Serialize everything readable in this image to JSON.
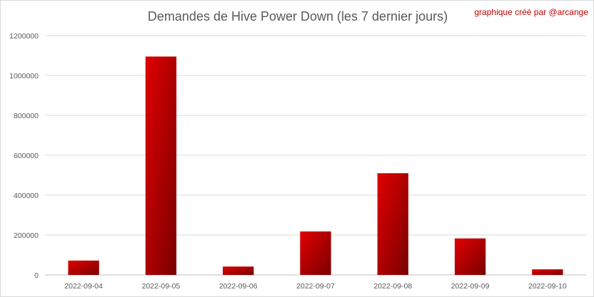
{
  "chart_data": {
    "type": "bar",
    "title": "Demandes de Hive Power Down (les 7 dernier jours)",
    "annotation": "graphique créé par @arcange",
    "xlabel": "",
    "ylabel": "",
    "categories": [
      "2022-09-04",
      "2022-09-05",
      "2022-09-06",
      "2022-09-07",
      "2022-09-08",
      "2022-09-09",
      "2022-09-10"
    ],
    "values": [
      72000,
      1095000,
      42000,
      218000,
      510000,
      183000,
      28000
    ],
    "ylim": [
      0,
      1200000
    ],
    "yticks": [
      "0",
      "200000",
      "400000",
      "600000",
      "800000",
      "1000000",
      "1200000"
    ],
    "grid": true,
    "legend": "none",
    "colors": {
      "bar_light": "#e00000",
      "bar_dark": "#7a0000",
      "title": "#595959",
      "credit": "#c00000"
    }
  }
}
